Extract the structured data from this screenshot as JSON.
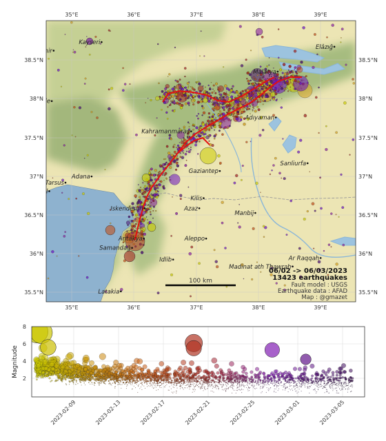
{
  "map": {
    "lon_ticks": [
      "35°E",
      "36°E",
      "37°E",
      "38°E",
      "39°E"
    ],
    "lat_ticks": [
      "38.5°N",
      "38°N",
      "37.5°N",
      "37°N",
      "36.5°N",
      "36°N",
      "35.5°N"
    ],
    "cities": [
      {
        "name": "Kayseri",
        "lon": 35.48,
        "lat": 38.73
      },
      {
        "name": "Nevşehir",
        "lon": 34.71,
        "lat": 38.62
      },
      {
        "name": "Elâzığ",
        "lon": 39.22,
        "lat": 38.67
      },
      {
        "name": "Malatya",
        "lon": 38.31,
        "lat": 38.35
      },
      {
        "name": "Niğde",
        "lon": 34.68,
        "lat": 37.97
      },
      {
        "name": "Adıyaman",
        "lon": 38.28,
        "lat": 37.76
      },
      {
        "name": "Kahramanmaraş",
        "lon": 36.92,
        "lat": 37.58
      },
      {
        "name": "Gaziantep",
        "lon": 37.38,
        "lat": 37.07
      },
      {
        "name": "Sanliurfa",
        "lon": 38.79,
        "lat": 37.17
      },
      {
        "name": "Adana",
        "lon": 35.32,
        "lat": 37.0
      },
      {
        "name": "Tarsus",
        "lon": 34.9,
        "lat": 36.92
      },
      {
        "name": "Içel",
        "lon": 34.64,
        "lat": 36.81
      },
      {
        "name": "Kilis",
        "lon": 37.12,
        "lat": 36.72
      },
      {
        "name": "Iskenderun",
        "lon": 36.17,
        "lat": 36.59
      },
      {
        "name": "Azaz",
        "lon": 37.05,
        "lat": 36.59
      },
      {
        "name": "Manbij",
        "lon": 37.95,
        "lat": 36.53
      },
      {
        "name": "Antakya",
        "lon": 36.16,
        "lat": 36.2
      },
      {
        "name": "Aleppo",
        "lon": 37.16,
        "lat": 36.2
      },
      {
        "name": "Samandağ",
        "lon": 35.97,
        "lat": 36.08
      },
      {
        "name": "Idlib",
        "lon": 36.63,
        "lat": 35.93
      },
      {
        "name": "Ar Raqqah",
        "lon": 39.0,
        "lat": 35.95
      },
      {
        "name": "Madinat ath Thawrah",
        "lon": 38.55,
        "lat": 35.84
      },
      {
        "name": "Latakia",
        "lon": 35.79,
        "lat": 35.52
      }
    ],
    "date_range": "06/02 -> 06/03/2023",
    "count_label": "13423 earthquakes",
    "fault_model": "Fault model : USGS",
    "eq_data": "Earthquake data : AFAD",
    "credit": "Map : @gmazet",
    "scale_label": "100 km",
    "colors": {
      "land": "#ede6b6",
      "sea": "#8fb3cf",
      "relief": "#7fa870",
      "fault": "#e01010",
      "early": "#cccc00",
      "mid": "#c0501a",
      "late": "#6a10c0"
    }
  },
  "timeline": {
    "ylabel": "Magnitude",
    "yticks": [
      "2",
      "4",
      "6",
      "8"
    ],
    "xticks": [
      "2023-02-09",
      "2023-02-13",
      "2023-02-17",
      "2023-02-21",
      "2023-02-25",
      "2023-03-01",
      "2023-03-05"
    ]
  },
  "chart_data": {
    "type": "scatter",
    "xlabel": "",
    "ylabel": "Magnitude",
    "ylim": [
      0.3,
      8.0
    ],
    "x_range": [
      "2023-02-06",
      "2023-03-06"
    ],
    "notable_events": [
      {
        "date": "2023-02-06",
        "magnitude": 7.7
      },
      {
        "date": "2023-02-06",
        "magnitude": 7.6
      },
      {
        "date": "2023-02-07",
        "magnitude": 5.9
      },
      {
        "date": "2023-02-20",
        "magnitude": 6.4
      },
      {
        "date": "2023-02-20",
        "magnitude": 5.8
      },
      {
        "date": "2023-02-27",
        "magnitude": 5.6
      },
      {
        "date": "2023-03-02",
        "magnitude": 4.5
      }
    ]
  }
}
